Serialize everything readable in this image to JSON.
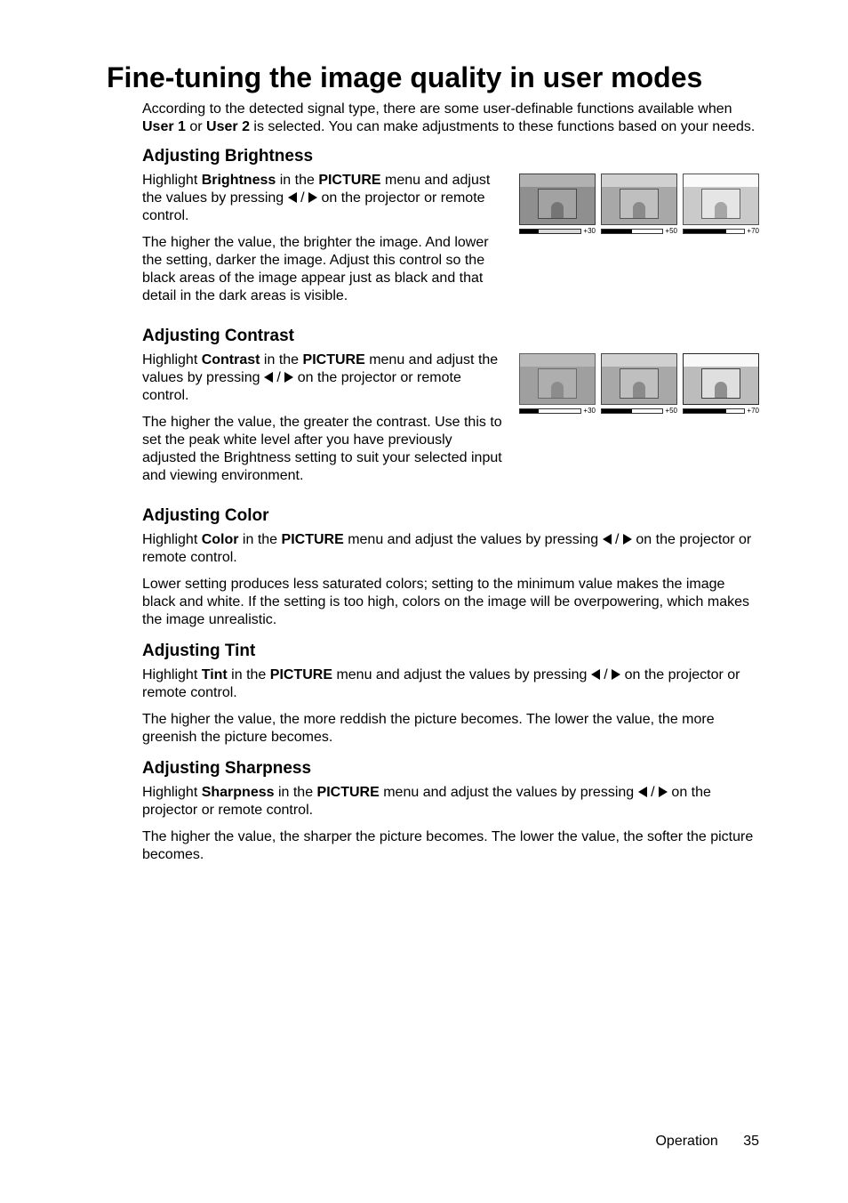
{
  "title": "Fine-tuning the image quality in user modes",
  "intro": "According to the detected signal type, there are some user-definable functions available when <b>User 1</b> or <b>User 2</b> is selected. You can make adjustments to these functions based on your needs.",
  "brightness": {
    "heading": "Adjusting Brightness",
    "p1_pre": "Highlight ",
    "p1_bold1": "Brightness",
    "p1_mid1": " in the ",
    "p1_bold2": "PICTURE",
    "p1_mid2": " menu and adjust the values by pressing ",
    "p1_post": " on the projector or remote control.",
    "p2": "The higher the value, the brighter the image. And lower the setting, darker the image. Adjust this control so the black areas of the image appear just as black and that detail in the dark areas is visible.",
    "thumbs": [
      {
        "label": "+30",
        "fill_pct": 30,
        "cls": "b30"
      },
      {
        "label": "+50",
        "fill_pct": 50,
        "cls": "b50"
      },
      {
        "label": "+70",
        "fill_pct": 70,
        "cls": "b70"
      }
    ]
  },
  "contrast": {
    "heading": "Adjusting Contrast",
    "p1_pre": "Highlight ",
    "p1_bold1": "Contrast",
    "p1_mid1": " in the ",
    "p1_bold2": "PICTURE",
    "p1_mid2": " menu and adjust the values by pressing ",
    "p1_post": " on the projector or remote control.",
    "p2": "The higher the value, the greater the contrast. Use this to set the peak white level after you have previously adjusted the Brightness setting to suit your selected input and viewing environment.",
    "thumbs": [
      {
        "label": "+30",
        "fill_pct": 30,
        "cls": "c30"
      },
      {
        "label": "+50",
        "fill_pct": 50,
        "cls": "c50"
      },
      {
        "label": "+70",
        "fill_pct": 70,
        "cls": "c70"
      }
    ]
  },
  "color": {
    "heading": "Adjusting Color",
    "p1_pre": "Highlight ",
    "p1_bold1": "Color",
    "p1_mid1": " in the ",
    "p1_bold2": "PICTURE",
    "p1_mid2": " menu and adjust the values by pressing ",
    "p1_post": " on the projector or remote control.",
    "p2": "Lower setting produces less saturated colors; setting to the minimum value makes the image black and white. If the setting is too high, colors on the image will be overpowering, which makes the image unrealistic."
  },
  "tint": {
    "heading": "Adjusting Tint",
    "p1_pre": "Highlight ",
    "p1_bold1": "Tint",
    "p1_mid1": " in the ",
    "p1_bold2": "PICTURE",
    "p1_mid2": " menu and adjust the values by pressing ",
    "p1_post": " on the projector or remote control.",
    "p2": "The higher the value, the more reddish the picture becomes. The lower the value, the more greenish the picture becomes."
  },
  "sharpness": {
    "heading": "Adjusting Sharpness",
    "p1_pre": "Highlight ",
    "p1_bold1": "Sharpness",
    "p1_mid1": " in the ",
    "p1_bold2": "PICTURE",
    "p1_mid2": " menu and adjust the values by pressing ",
    "p1_post": " on the projector or remote control.",
    "p2": "The higher the value, the sharper the picture becomes. The lower the value, the softer the picture becomes."
  },
  "footer": {
    "section": "Operation",
    "page": "35"
  }
}
